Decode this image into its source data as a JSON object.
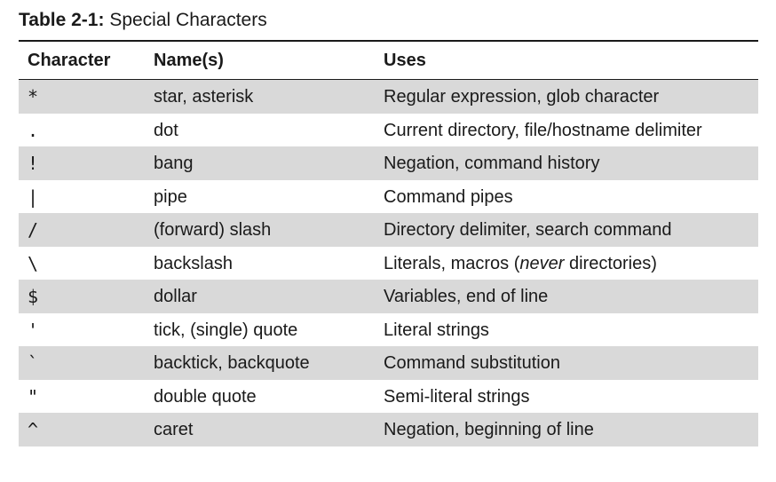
{
  "caption": {
    "number": "Table 2-1:",
    "title": "Special Characters"
  },
  "table": {
    "headers": {
      "character": "Character",
      "names": "Name(s)",
      "uses": "Uses"
    },
    "rows": [
      {
        "character": "*",
        "names": "star, asterisk",
        "uses_pre": "Regular expression, glob character",
        "uses_em": "",
        "uses_post": ""
      },
      {
        "character": ".",
        "names": "dot",
        "uses_pre": "Current directory, file/hostname delimiter",
        "uses_em": "",
        "uses_post": ""
      },
      {
        "character": "!",
        "names": "bang",
        "uses_pre": "Negation, command history",
        "uses_em": "",
        "uses_post": ""
      },
      {
        "character": "|",
        "names": "pipe",
        "uses_pre": "Command pipes",
        "uses_em": "",
        "uses_post": ""
      },
      {
        "character": "/",
        "names": "(forward) slash",
        "uses_pre": "Directory delimiter, search command",
        "uses_em": "",
        "uses_post": ""
      },
      {
        "character": "\\",
        "names": "backslash",
        "uses_pre": "Literals, macros (",
        "uses_em": "never",
        "uses_post": " directories)"
      },
      {
        "character": "$",
        "names": "dollar",
        "uses_pre": "Variables, end of line",
        "uses_em": "",
        "uses_post": ""
      },
      {
        "character": "'",
        "names": "tick, (single) quote",
        "uses_pre": "Literal strings",
        "uses_em": "",
        "uses_post": ""
      },
      {
        "character": "`",
        "names": "backtick, backquote",
        "uses_pre": "Command substitution",
        "uses_em": "",
        "uses_post": ""
      },
      {
        "character": "\"",
        "names": "double quote",
        "uses_pre": "Semi-literal strings",
        "uses_em": "",
        "uses_post": ""
      },
      {
        "character": "^",
        "names": "caret",
        "uses_pre": "Negation, beginning of line",
        "uses_em": "",
        "uses_post": ""
      }
    ],
    "shade_color": "#d9d9d9"
  }
}
